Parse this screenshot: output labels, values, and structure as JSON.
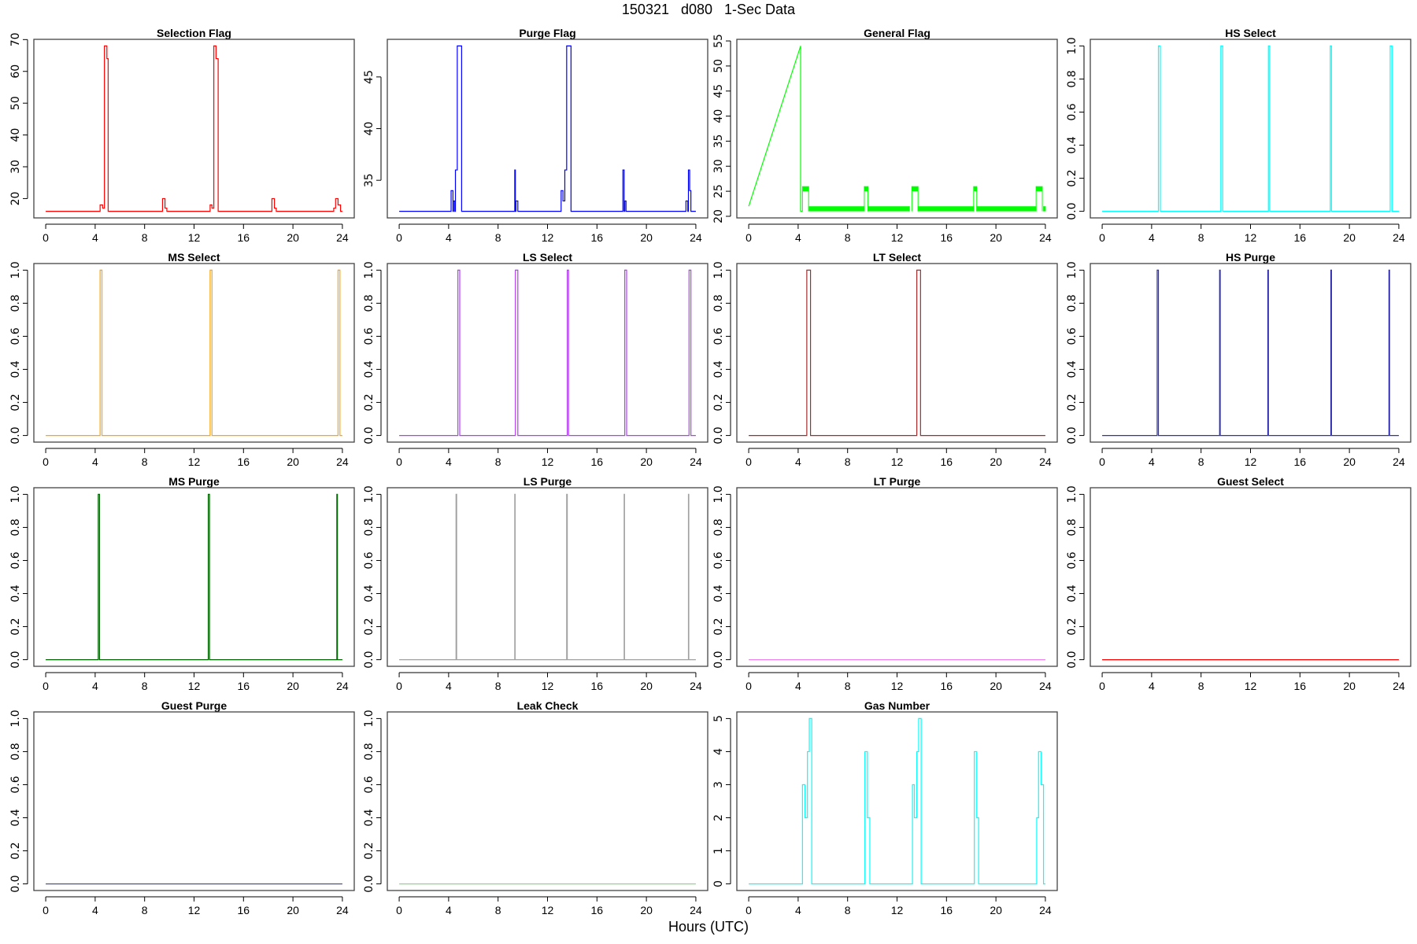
{
  "title": "150321   d080   1-Sec Data",
  "xlabel": "Hours (UTC)",
  "chart_data": [
    {
      "type": "line",
      "title": "Selection Flag",
      "color": "#ff0000",
      "xlim": [
        0,
        24
      ],
      "ylim": [
        16,
        68
      ],
      "xticks": [
        0,
        4,
        8,
        12,
        16,
        20,
        24
      ],
      "yticks": [
        20,
        30,
        40,
        50,
        60,
        70
      ],
      "steps": [
        [
          0,
          16
        ],
        [
          4.4,
          18
        ],
        [
          4.6,
          17
        ],
        [
          4.75,
          68
        ],
        [
          4.95,
          64
        ],
        [
          5.05,
          16
        ],
        [
          9.45,
          20
        ],
        [
          9.65,
          17
        ],
        [
          9.8,
          16
        ],
        [
          13.3,
          18
        ],
        [
          13.45,
          17
        ],
        [
          13.6,
          68
        ],
        [
          13.78,
          64
        ],
        [
          13.95,
          16
        ],
        [
          18.3,
          20
        ],
        [
          18.5,
          17
        ],
        [
          18.65,
          16
        ],
        [
          23.3,
          17
        ],
        [
          23.45,
          20
        ],
        [
          23.65,
          18
        ],
        [
          23.85,
          16
        ],
        [
          24,
          16
        ]
      ]
    },
    {
      "type": "line",
      "title": "Purge Flag",
      "color": "#0000ff",
      "xlim": [
        0,
        24
      ],
      "ylim": [
        32,
        48
      ],
      "xticks": [
        0,
        4,
        8,
        12,
        16,
        20,
        24
      ],
      "yticks": [
        35,
        40,
        45
      ],
      "steps": [
        [
          0,
          32
        ],
        [
          4.2,
          34
        ],
        [
          4.35,
          32
        ],
        [
          4.4,
          33
        ],
        [
          4.5,
          32
        ],
        [
          4.55,
          36
        ],
        [
          4.7,
          48
        ],
        [
          5.05,
          32
        ],
        [
          9.35,
          36
        ],
        [
          9.4,
          32
        ],
        [
          9.45,
          33
        ],
        [
          9.6,
          32
        ],
        [
          13.1,
          34
        ],
        [
          13.25,
          33
        ],
        [
          13.4,
          36
        ],
        [
          13.55,
          48
        ],
        [
          13.9,
          32
        ],
        [
          18.1,
          36
        ],
        [
          18.2,
          32
        ],
        [
          18.25,
          33
        ],
        [
          18.35,
          32
        ],
        [
          23.2,
          33
        ],
        [
          23.35,
          32
        ],
        [
          23.4,
          36
        ],
        [
          23.5,
          34
        ],
        [
          23.6,
          32
        ],
        [
          24,
          32
        ]
      ]
    },
    {
      "type": "line",
      "title": "General Flag",
      "color": "#00ff00",
      "xlim": [
        0,
        24
      ],
      "ylim": [
        21,
        54
      ],
      "xticks": [
        0,
        4,
        8,
        12,
        16,
        20,
        24
      ],
      "yticks": [
        20,
        25,
        30,
        35,
        40,
        45,
        50,
        55
      ],
      "line": [
        [
          0,
          22
        ],
        [
          4.2,
          54
        ],
        [
          4.2,
          21
        ],
        [
          4.35,
          21
        ]
      ],
      "bands": [
        [
          4.35,
          4.85,
          25,
          26
        ],
        [
          4.85,
          9.35,
          21,
          22
        ],
        [
          9.35,
          9.65,
          25,
          26
        ],
        [
          9.65,
          13.0,
          21,
          22
        ],
        [
          13.2,
          13.7,
          25,
          26
        ],
        [
          13.7,
          18.2,
          21,
          22
        ],
        [
          18.2,
          18.45,
          25,
          26
        ],
        [
          18.45,
          23.25,
          21,
          22
        ],
        [
          23.25,
          23.75,
          25,
          26
        ],
        [
          23.85,
          24,
          21,
          22
        ]
      ]
    },
    {
      "type": "line",
      "title": "HS Select",
      "color": "#00ffff",
      "xlim": [
        0,
        24
      ],
      "ylim": [
        0,
        1
      ],
      "xticks": [
        0,
        4,
        8,
        12,
        16,
        20,
        24
      ],
      "yticks": [
        0,
        0.2,
        0.4,
        0.6,
        0.8,
        1.0
      ],
      "pulses": [
        [
          4.55,
          4.7
        ],
        [
          9.6,
          9.75
        ],
        [
          13.45,
          13.55
        ],
        [
          18.45,
          18.55
        ],
        [
          23.3,
          23.45
        ]
      ]
    },
    {
      "type": "line",
      "title": "MS Select",
      "color": "#ffa500",
      "xlim": [
        0,
        24
      ],
      "ylim": [
        0,
        1
      ],
      "xticks": [
        0,
        4,
        8,
        12,
        16,
        20,
        24
      ],
      "yticks": [
        0,
        0.2,
        0.4,
        0.6,
        0.8,
        1.0
      ],
      "pulses": [
        [
          4.4,
          4.55
        ],
        [
          13.3,
          13.45
        ],
        [
          23.65,
          23.8
        ]
      ]
    },
    {
      "type": "line",
      "title": "LS Select",
      "color": "#b040f0",
      "xlim": [
        0,
        24
      ],
      "ylim": [
        0,
        1
      ],
      "xticks": [
        0,
        4,
        8,
        12,
        16,
        20,
        24
      ],
      "yticks": [
        0,
        0.2,
        0.4,
        0.6,
        0.8,
        1.0
      ],
      "pulses": [
        [
          4.75,
          4.9
        ],
        [
          9.4,
          9.6
        ],
        [
          13.6,
          13.7
        ],
        [
          18.25,
          18.4
        ],
        [
          23.45,
          23.6
        ]
      ]
    },
    {
      "type": "line",
      "title": "LT Select",
      "color": "#a52a2a",
      "xlim": [
        0,
        24
      ],
      "ylim": [
        0,
        1
      ],
      "xticks": [
        0,
        4,
        8,
        12,
        16,
        20,
        24
      ],
      "yticks": [
        0,
        0.2,
        0.4,
        0.6,
        0.8,
        1.0
      ],
      "pulses": [
        [
          4.7,
          5.0
        ],
        [
          13.6,
          13.9
        ]
      ]
    },
    {
      "type": "line",
      "title": "HS Purge",
      "color": "#3030b0",
      "xlim": [
        0,
        24
      ],
      "ylim": [
        0,
        1
      ],
      "xticks": [
        0,
        4,
        8,
        12,
        16,
        20,
        24
      ],
      "yticks": [
        0,
        0.2,
        0.4,
        0.6,
        0.8,
        1.0
      ],
      "pulses": [
        [
          4.45,
          4.55
        ],
        [
          9.5,
          9.55
        ],
        [
          13.4,
          13.45
        ],
        [
          18.5,
          18.55
        ],
        [
          23.2,
          23.25
        ]
      ]
    },
    {
      "type": "line",
      "title": "MS Purge",
      "color": "#006400",
      "xlim": [
        0,
        24
      ],
      "ylim": [
        0,
        1
      ],
      "xticks": [
        0,
        4,
        8,
        12,
        16,
        20,
        24
      ],
      "yticks": [
        0,
        0.2,
        0.4,
        0.6,
        0.8,
        1.0
      ],
      "pulses": [
        [
          4.25,
          4.35
        ],
        [
          13.15,
          13.25
        ],
        [
          23.55,
          23.6
        ]
      ]
    },
    {
      "type": "line",
      "title": "LS Purge",
      "color": "#a0a0a0",
      "xlim": [
        0,
        24
      ],
      "ylim": [
        0,
        1
      ],
      "xticks": [
        0,
        4,
        8,
        12,
        16,
        20,
        24
      ],
      "yticks": [
        0,
        0.2,
        0.4,
        0.6,
        0.8,
        1.0
      ],
      "pulses": [
        [
          4.6,
          4.65
        ],
        [
          9.35,
          9.38
        ],
        [
          13.55,
          13.6
        ],
        [
          18.2,
          18.23
        ],
        [
          23.4,
          23.43
        ]
      ]
    },
    {
      "type": "line",
      "title": "LT Purge",
      "color": "#ee82ee",
      "xlim": [
        0,
        24
      ],
      "ylim": [
        0,
        1
      ],
      "xticks": [
        0,
        4,
        8,
        12,
        16,
        20,
        24
      ],
      "yticks": [
        0,
        0.2,
        0.4,
        0.6,
        0.8,
        1.0
      ],
      "pulses": []
    },
    {
      "type": "line",
      "title": "Guest Select",
      "color": "#ff0000",
      "xlim": [
        0,
        24
      ],
      "ylim": [
        0,
        1
      ],
      "xticks": [
        0,
        4,
        8,
        12,
        16,
        20,
        24
      ],
      "yticks": [
        0,
        0.2,
        0.4,
        0.6,
        0.8,
        1.0
      ],
      "pulses": []
    },
    {
      "type": "line",
      "title": "Guest Purge",
      "color": "#5050a8",
      "xlim": [
        0,
        24
      ],
      "ylim": [
        0,
        1
      ],
      "xticks": [
        0,
        4,
        8,
        12,
        16,
        20,
        24
      ],
      "yticks": [
        0,
        0.2,
        0.4,
        0.6,
        0.8,
        1.0
      ],
      "pulses": []
    },
    {
      "type": "line",
      "title": "Leak Check",
      "color": "#80e080",
      "xlim": [
        0,
        24
      ],
      "ylim": [
        0,
        1
      ],
      "xticks": [
        0,
        4,
        8,
        12,
        16,
        20,
        24
      ],
      "yticks": [
        0,
        0.2,
        0.4,
        0.6,
        0.8,
        1.0
      ],
      "pulses": []
    },
    {
      "type": "line",
      "title": "Gas Number",
      "color": "#00ffff",
      "xlim": [
        0,
        24
      ],
      "ylim": [
        0,
        5
      ],
      "xticks": [
        0,
        4,
        8,
        12,
        16,
        20,
        24
      ],
      "yticks": [
        0,
        1,
        2,
        3,
        4,
        5
      ],
      "steps": [
        [
          0,
          0
        ],
        [
          4.35,
          3
        ],
        [
          4.55,
          2
        ],
        [
          4.75,
          4
        ],
        [
          4.9,
          5
        ],
        [
          5.1,
          0
        ],
        [
          9.4,
          4
        ],
        [
          9.6,
          2
        ],
        [
          9.8,
          0
        ],
        [
          13.25,
          3
        ],
        [
          13.4,
          2
        ],
        [
          13.6,
          4
        ],
        [
          13.75,
          5
        ],
        [
          13.95,
          0
        ],
        [
          18.25,
          4
        ],
        [
          18.45,
          2
        ],
        [
          18.6,
          0
        ],
        [
          23.3,
          2
        ],
        [
          23.45,
          4
        ],
        [
          23.65,
          3
        ],
        [
          23.85,
          0
        ],
        [
          24,
          0
        ]
      ]
    }
  ]
}
